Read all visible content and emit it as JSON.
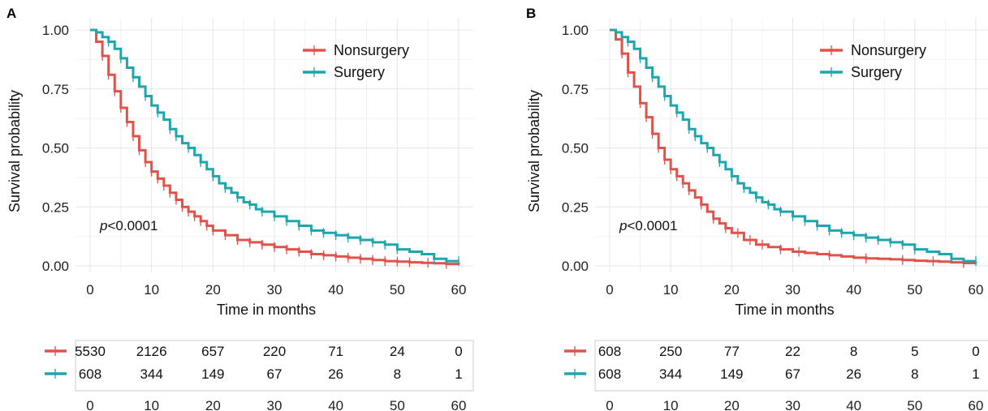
{
  "chart_data": [
    {
      "panel": "A",
      "type": "line",
      "xlabel": "Time in months",
      "ylabel": "Survival probability",
      "xlim": [
        0,
        60
      ],
      "ylim": [
        0,
        1
      ],
      "xticks": [
        "0",
        "10",
        "20",
        "30",
        "40",
        "50",
        "60"
      ],
      "yticks": [
        "0.00",
        "0.25",
        "0.50",
        "0.75",
        "1.00"
      ],
      "grid": true,
      "legend_position": "top-right",
      "annotation": {
        "italic": "p",
        "rest": "<0.0001"
      },
      "series": [
        {
          "name": "Nonsurgery",
          "color": "#e0524a",
          "x": [
            0,
            1,
            2,
            3,
            4,
            5,
            6,
            7,
            8,
            9,
            10,
            11,
            12,
            13,
            14,
            15,
            16,
            17,
            18,
            19,
            20,
            22,
            24,
            26,
            28,
            30,
            32,
            34,
            36,
            38,
            40,
            42,
            44,
            46,
            48,
            50,
            52,
            54,
            56,
            58,
            60
          ],
          "y": [
            1.0,
            0.95,
            0.89,
            0.81,
            0.74,
            0.67,
            0.61,
            0.55,
            0.49,
            0.44,
            0.4,
            0.37,
            0.34,
            0.31,
            0.28,
            0.25,
            0.23,
            0.21,
            0.19,
            0.17,
            0.15,
            0.13,
            0.11,
            0.1,
            0.09,
            0.08,
            0.07,
            0.06,
            0.05,
            0.045,
            0.04,
            0.035,
            0.03,
            0.025,
            0.02,
            0.018,
            0.015,
            0.013,
            0.011,
            0.008,
            0.005
          ],
          "censor_x": [
            2,
            3,
            4,
            5,
            6,
            7,
            8,
            9,
            10,
            11,
            12,
            13,
            14,
            15,
            16,
            17,
            18,
            19,
            20,
            22,
            24,
            26,
            28,
            30,
            32,
            34,
            36,
            38,
            40,
            42,
            44,
            46,
            48,
            50,
            52,
            55,
            58
          ]
        },
        {
          "name": "Surgery",
          "color": "#1ea6ad",
          "x": [
            0,
            1,
            2,
            3,
            4,
            5,
            6,
            7,
            8,
            9,
            10,
            11,
            12,
            13,
            14,
            15,
            16,
            17,
            18,
            19,
            20,
            21,
            22,
            23,
            24,
            25,
            26,
            27,
            28,
            30,
            32,
            34,
            36,
            38,
            40,
            42,
            44,
            46,
            48,
            50,
            52,
            54,
            56,
            58,
            60
          ],
          "y": [
            1.0,
            0.99,
            0.97,
            0.95,
            0.92,
            0.88,
            0.84,
            0.8,
            0.76,
            0.72,
            0.68,
            0.65,
            0.62,
            0.58,
            0.55,
            0.52,
            0.5,
            0.47,
            0.44,
            0.41,
            0.38,
            0.35,
            0.33,
            0.31,
            0.29,
            0.27,
            0.26,
            0.24,
            0.23,
            0.21,
            0.19,
            0.17,
            0.15,
            0.14,
            0.13,
            0.12,
            0.11,
            0.1,
            0.09,
            0.07,
            0.06,
            0.05,
            0.03,
            0.02,
            0.02
          ],
          "censor_x": [
            3,
            5,
            7,
            9,
            11,
            13,
            14,
            16,
            18,
            20,
            22,
            24,
            26,
            28,
            30,
            32,
            34,
            36,
            38,
            40,
            42,
            44,
            46,
            48,
            50,
            56,
            60
          ]
        }
      ],
      "risk_table": {
        "times": [
          "0",
          "10",
          "20",
          "30",
          "40",
          "50",
          "60"
        ],
        "rows": [
          {
            "name": "Nonsurgery",
            "color": "#e0524a",
            "values": [
              "5530",
              "2126",
              "657",
              "220",
              "71",
              "24",
              "0"
            ]
          },
          {
            "name": "Surgery",
            "color": "#1ea6ad",
            "values": [
              "608",
              "344",
              "149",
              "67",
              "26",
              "8",
              "1"
            ]
          }
        ]
      }
    },
    {
      "panel": "B",
      "type": "line",
      "xlabel": "Time in months",
      "ylabel": "Survival probability",
      "xlim": [
        0,
        60
      ],
      "ylim": [
        0,
        1
      ],
      "xticks": [
        "0",
        "10",
        "20",
        "30",
        "40",
        "50",
        "60"
      ],
      "yticks": [
        "0.00",
        "0.25",
        "0.50",
        "0.75",
        "1.00"
      ],
      "grid": true,
      "legend_position": "top-right",
      "annotation": {
        "italic": "p",
        "rest": "<0.0001"
      },
      "series": [
        {
          "name": "Nonsurgery",
          "color": "#e0524a",
          "x": [
            0,
            1,
            2,
            3,
            4,
            5,
            6,
            7,
            8,
            9,
            10,
            11,
            12,
            13,
            14,
            15,
            16,
            17,
            18,
            19,
            20,
            22,
            24,
            26,
            28,
            30,
            32,
            34,
            36,
            38,
            40,
            42,
            44,
            46,
            48,
            50,
            52,
            54,
            56,
            58,
            60
          ],
          "y": [
            1.0,
            0.96,
            0.9,
            0.82,
            0.76,
            0.69,
            0.63,
            0.56,
            0.5,
            0.45,
            0.41,
            0.38,
            0.35,
            0.32,
            0.29,
            0.26,
            0.23,
            0.2,
            0.18,
            0.16,
            0.14,
            0.11,
            0.09,
            0.08,
            0.07,
            0.06,
            0.055,
            0.05,
            0.045,
            0.04,
            0.035,
            0.032,
            0.03,
            0.028,
            0.025,
            0.022,
            0.02,
            0.018,
            0.015,
            0.012,
            0.01
          ],
          "censor_x": [
            2,
            3,
            5,
            6,
            7,
            8,
            9,
            10,
            11,
            12,
            13,
            15,
            17,
            19,
            21,
            23,
            25,
            28,
            31,
            36,
            42,
            48,
            53,
            58
          ]
        },
        {
          "name": "Surgery",
          "color": "#1ea6ad",
          "x": [
            0,
            1,
            2,
            3,
            4,
            5,
            6,
            7,
            8,
            9,
            10,
            11,
            12,
            13,
            14,
            15,
            16,
            17,
            18,
            19,
            20,
            21,
            22,
            23,
            24,
            25,
            26,
            27,
            28,
            30,
            32,
            34,
            36,
            38,
            40,
            42,
            44,
            46,
            48,
            50,
            52,
            54,
            56,
            58,
            60
          ],
          "y": [
            1.0,
            0.99,
            0.97,
            0.95,
            0.92,
            0.88,
            0.84,
            0.8,
            0.76,
            0.72,
            0.68,
            0.65,
            0.62,
            0.58,
            0.55,
            0.52,
            0.5,
            0.47,
            0.44,
            0.41,
            0.38,
            0.35,
            0.33,
            0.31,
            0.29,
            0.27,
            0.26,
            0.24,
            0.23,
            0.21,
            0.19,
            0.17,
            0.15,
            0.14,
            0.13,
            0.12,
            0.11,
            0.1,
            0.09,
            0.07,
            0.06,
            0.05,
            0.03,
            0.02,
            0.02
          ],
          "censor_x": [
            3,
            5,
            7,
            9,
            11,
            13,
            14,
            16,
            18,
            20,
            22,
            24,
            26,
            28,
            30,
            32,
            34,
            36,
            38,
            40,
            42,
            44,
            46,
            48,
            50,
            56,
            60
          ]
        }
      ],
      "risk_table": {
        "times": [
          "0",
          "10",
          "20",
          "30",
          "40",
          "50",
          "60"
        ],
        "rows": [
          {
            "name": "Nonsurgery",
            "color": "#e0524a",
            "values": [
              "608",
              "250",
              "77",
              "22",
              "8",
              "5",
              "0"
            ]
          },
          {
            "name": "Surgery",
            "color": "#1ea6ad",
            "values": [
              "608",
              "344",
              "149",
              "67",
              "26",
              "8",
              "1"
            ]
          }
        ]
      }
    }
  ]
}
